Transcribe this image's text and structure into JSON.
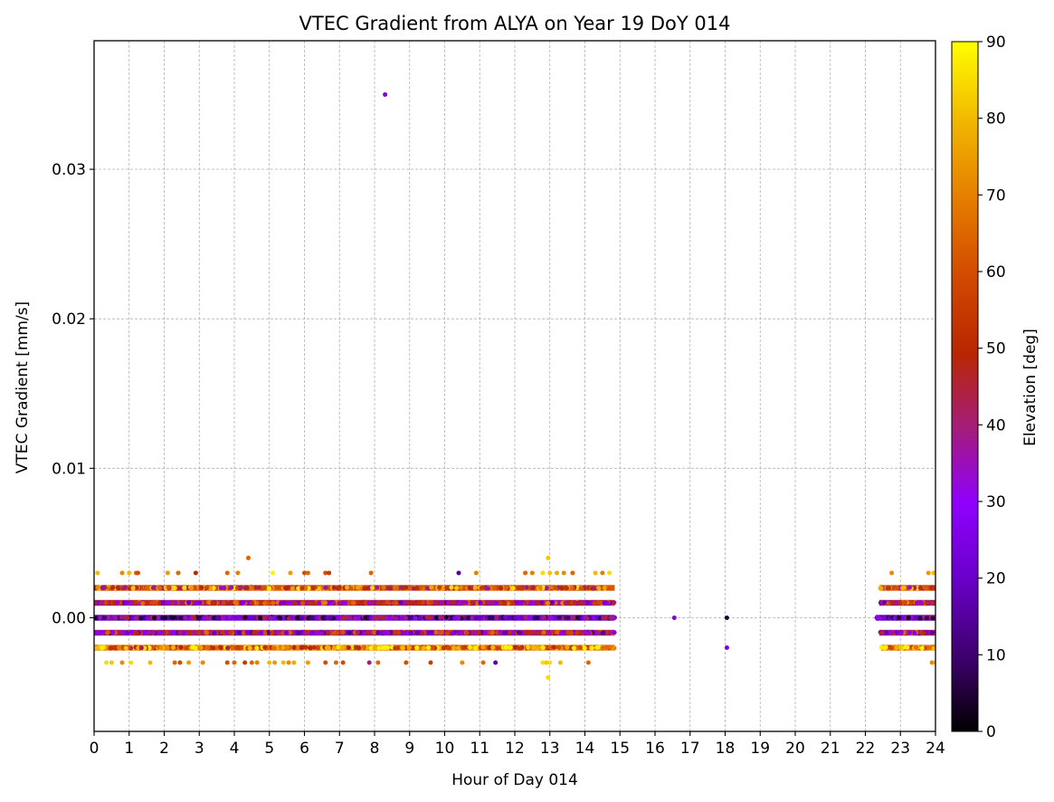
{
  "chart_data": {
    "type": "scatter",
    "title": "VTEC Gradient from ALYA on Year 19 DoY 014",
    "xlabel": "Hour of Day 014",
    "ylabel": "VTEC Gradient [mm/s]",
    "xlim": [
      0,
      24
    ],
    "ylim": [
      -0.0076,
      0.0386
    ],
    "x_ticks": [
      0,
      1,
      2,
      3,
      4,
      5,
      6,
      7,
      8,
      9,
      10,
      11,
      12,
      13,
      14,
      15,
      16,
      17,
      18,
      19,
      20,
      21,
      22,
      23,
      24
    ],
    "x_tick_labels": [
      "0",
      "1",
      "2",
      "3",
      "4",
      "5",
      "6",
      "7",
      "8",
      "9",
      "10",
      "11",
      "12",
      "13",
      "14",
      "15",
      "16",
      "17",
      "18",
      "19",
      "20",
      "21",
      "22",
      "23",
      "24"
    ],
    "y_ticks": [
      0.0,
      0.01,
      0.02,
      0.03
    ],
    "y_tick_labels": [
      "0.00",
      "0.01",
      "0.02",
      "0.03"
    ],
    "grid": true,
    "colormap": "gnuplot",
    "colorbar": {
      "label": "Elevation [deg]",
      "range": [
        0,
        90
      ],
      "ticks": [
        0,
        10,
        20,
        30,
        40,
        50,
        60,
        70,
        80,
        90
      ],
      "tick_labels": [
        "0",
        "10",
        "20",
        "30",
        "40",
        "50",
        "60",
        "70",
        "80",
        "90"
      ]
    },
    "dense_bands": [
      {
        "y": 0.002,
        "segments": [
          [
            0,
            14.85
          ],
          [
            22.4,
            24
          ]
        ],
        "elevation": 62
      },
      {
        "y": 0.001,
        "segments": [
          [
            0,
            14.85
          ],
          [
            22.4,
            24
          ]
        ],
        "elevation": 45
      },
      {
        "y": 0.0,
        "segments": [
          [
            0,
            14.85
          ],
          [
            22.3,
            24
          ]
        ],
        "elevation": 20
      },
      {
        "y": -0.001,
        "segments": [
          [
            0,
            14.85
          ],
          [
            22.4,
            24
          ]
        ],
        "elevation": 40
      },
      {
        "y": -0.002,
        "segments": [
          [
            0,
            14.85
          ],
          [
            22.45,
            24
          ]
        ],
        "elevation": 70
      }
    ],
    "points": [
      {
        "x": 8.3,
        "y": 0.035,
        "elevation": 25
      },
      {
        "x": 16.55,
        "y": 0.0,
        "elevation": 25
      },
      {
        "x": 18.05,
        "y": 0.0,
        "elevation": 5
      },
      {
        "x": 18.05,
        "y": -0.002,
        "elevation": 25
      },
      {
        "x": 4.4,
        "y": 0.004,
        "elevation": 65
      },
      {
        "x": 12.95,
        "y": 0.004,
        "elevation": 82
      },
      {
        "x": 12.95,
        "y": -0.004,
        "elevation": 85
      },
      {
        "x": 0.1,
        "y": 0.003,
        "elevation": 80
      },
      {
        "x": 0.8,
        "y": 0.003,
        "elevation": 72
      },
      {
        "x": 1.0,
        "y": 0.003,
        "elevation": 80
      },
      {
        "x": 1.2,
        "y": 0.003,
        "elevation": 65
      },
      {
        "x": 1.25,
        "y": 0.003,
        "elevation": 60
      },
      {
        "x": 2.1,
        "y": 0.003,
        "elevation": 75
      },
      {
        "x": 2.4,
        "y": 0.003,
        "elevation": 65
      },
      {
        "x": 2.9,
        "y": 0.003,
        "elevation": 50
      },
      {
        "x": 3.8,
        "y": 0.003,
        "elevation": 65
      },
      {
        "x": 4.1,
        "y": 0.003,
        "elevation": 70
      },
      {
        "x": 5.1,
        "y": 0.003,
        "elevation": 88
      },
      {
        "x": 5.6,
        "y": 0.003,
        "elevation": 75
      },
      {
        "x": 6.0,
        "y": 0.003,
        "elevation": 60
      },
      {
        "x": 6.1,
        "y": 0.003,
        "elevation": 65
      },
      {
        "x": 6.6,
        "y": 0.003,
        "elevation": 60
      },
      {
        "x": 6.7,
        "y": 0.003,
        "elevation": 55
      },
      {
        "x": 7.9,
        "y": 0.003,
        "elevation": 65
      },
      {
        "x": 10.4,
        "y": 0.003,
        "elevation": 15
      },
      {
        "x": 10.9,
        "y": 0.003,
        "elevation": 70
      },
      {
        "x": 12.3,
        "y": 0.003,
        "elevation": 65
      },
      {
        "x": 12.5,
        "y": 0.003,
        "elevation": 70
      },
      {
        "x": 12.8,
        "y": 0.003,
        "elevation": 85
      },
      {
        "x": 13.0,
        "y": 0.003,
        "elevation": 82
      },
      {
        "x": 13.2,
        "y": 0.003,
        "elevation": 78
      },
      {
        "x": 13.4,
        "y": 0.003,
        "elevation": 72
      },
      {
        "x": 13.65,
        "y": 0.003,
        "elevation": 65
      },
      {
        "x": 14.3,
        "y": 0.003,
        "elevation": 80
      },
      {
        "x": 14.5,
        "y": 0.003,
        "elevation": 70
      },
      {
        "x": 14.7,
        "y": 0.003,
        "elevation": 85
      },
      {
        "x": 22.75,
        "y": 0.003,
        "elevation": 72
      },
      {
        "x": 23.8,
        "y": 0.003,
        "elevation": 75
      },
      {
        "x": 23.95,
        "y": 0.003,
        "elevation": 80
      },
      {
        "x": 0.35,
        "y": -0.003,
        "elevation": 85
      },
      {
        "x": 0.5,
        "y": -0.003,
        "elevation": 82
      },
      {
        "x": 0.8,
        "y": -0.003,
        "elevation": 72
      },
      {
        "x": 1.05,
        "y": -0.003,
        "elevation": 85
      },
      {
        "x": 1.6,
        "y": -0.003,
        "elevation": 80
      },
      {
        "x": 2.3,
        "y": -0.003,
        "elevation": 65
      },
      {
        "x": 2.45,
        "y": -0.003,
        "elevation": 60
      },
      {
        "x": 2.7,
        "y": -0.003,
        "elevation": 75
      },
      {
        "x": 3.1,
        "y": -0.003,
        "elevation": 72
      },
      {
        "x": 3.8,
        "y": -0.003,
        "elevation": 60
      },
      {
        "x": 4.0,
        "y": -0.003,
        "elevation": 65
      },
      {
        "x": 4.3,
        "y": -0.003,
        "elevation": 55
      },
      {
        "x": 4.5,
        "y": -0.003,
        "elevation": 65
      },
      {
        "x": 4.65,
        "y": -0.003,
        "elevation": 70
      },
      {
        "x": 5.0,
        "y": -0.003,
        "elevation": 80
      },
      {
        "x": 5.15,
        "y": -0.003,
        "elevation": 75
      },
      {
        "x": 5.4,
        "y": -0.003,
        "elevation": 80
      },
      {
        "x": 5.55,
        "y": -0.003,
        "elevation": 72
      },
      {
        "x": 5.7,
        "y": -0.003,
        "elevation": 78
      },
      {
        "x": 6.1,
        "y": -0.003,
        "elevation": 75
      },
      {
        "x": 6.6,
        "y": -0.003,
        "elevation": 60
      },
      {
        "x": 6.9,
        "y": -0.003,
        "elevation": 65
      },
      {
        "x": 7.1,
        "y": -0.003,
        "elevation": 60
      },
      {
        "x": 7.85,
        "y": -0.003,
        "elevation": 40
      },
      {
        "x": 8.1,
        "y": -0.003,
        "elevation": 65
      },
      {
        "x": 8.9,
        "y": -0.003,
        "elevation": 60
      },
      {
        "x": 9.6,
        "y": -0.003,
        "elevation": 55
      },
      {
        "x": 10.5,
        "y": -0.003,
        "elevation": 72
      },
      {
        "x": 11.1,
        "y": -0.003,
        "elevation": 65
      },
      {
        "x": 11.45,
        "y": -0.003,
        "elevation": 15
      },
      {
        "x": 12.8,
        "y": -0.003,
        "elevation": 85
      },
      {
        "x": 12.9,
        "y": -0.003,
        "elevation": 82
      },
      {
        "x": 13.0,
        "y": -0.003,
        "elevation": 85
      },
      {
        "x": 13.3,
        "y": -0.003,
        "elevation": 80
      },
      {
        "x": 14.1,
        "y": -0.003,
        "elevation": 65
      },
      {
        "x": 23.9,
        "y": -0.003,
        "elevation": 72
      },
      {
        "x": 24.0,
        "y": -0.003,
        "elevation": 78
      }
    ]
  }
}
